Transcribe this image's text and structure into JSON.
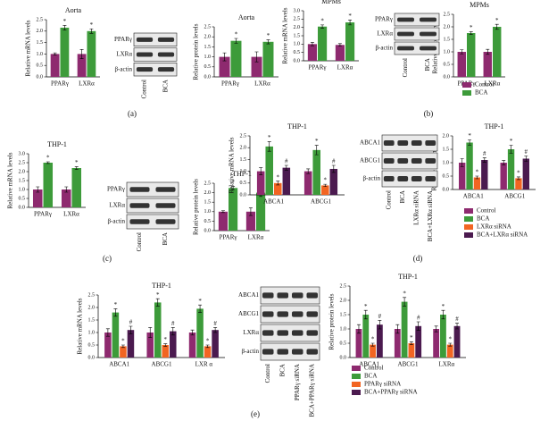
{
  "chart_data": [
    {
      "type": "bar",
      "title": "Aorta",
      "ylabel": "Relative mRNA levels",
      "categories": [
        "PPARγ",
        "LXRα"
      ],
      "ylim": [
        0,
        2.5
      ],
      "yticks": [
        {
          "value": 0,
          "label": "0.0"
        },
        0.5,
        {
          "value": 1,
          "label": "1.0"
        },
        1.5,
        {
          "value": 2,
          "label": "2.0"
        },
        2.5
      ],
      "series": [
        {
          "name": "Control",
          "color": "#8e2a6f",
          "values": [
            1.0,
            1.0
          ],
          "errors": [
            0.05,
            0.2
          ]
        },
        {
          "name": "BCA",
          "color": "#3d9b3a",
          "values": [
            2.15,
            2.0
          ],
          "errors": [
            0.1,
            0.1
          ],
          "marks": [
            "*",
            "*"
          ]
        }
      ]
    },
    {
      "type": "bar",
      "title": "Aorta",
      "ylabel": "Relative protein levels",
      "categories": [
        "PPARγ",
        "LXRα"
      ],
      "ylim": [
        0,
        2.5
      ],
      "yticks": [
        {
          "value": 0,
          "label": "0.0"
        },
        0.5,
        {
          "value": 1,
          "label": "1.0"
        },
        1.5,
        {
          "value": 2,
          "label": "2.0"
        },
        2.5
      ],
      "series": [
        {
          "name": "Control",
          "color": "#8e2a6f",
          "values": [
            1.0,
            1.0
          ],
          "errors": [
            0.2,
            0.25
          ]
        },
        {
          "name": "BCA",
          "color": "#3d9b3a",
          "values": [
            1.8,
            1.75
          ],
          "errors": [
            0.12,
            0.1
          ],
          "marks": [
            "*",
            "*"
          ]
        }
      ]
    },
    {
      "type": "bar",
      "title": "MPMs",
      "ylabel": "Relative mRNA levels",
      "categories": [
        "PPARγ",
        "LXRα"
      ],
      "ylim": [
        0,
        3
      ],
      "yticks": [
        {
          "value": 0,
          "label": "0.0"
        },
        0.5,
        {
          "value": 1,
          "label": "1.0"
        },
        1.5,
        {
          "value": 2,
          "label": "2.0"
        },
        2.5,
        {
          "value": 3,
          "label": "3.0"
        }
      ],
      "series": [
        {
          "name": "Control",
          "color": "#8e2a6f",
          "values": [
            1.0,
            0.95
          ],
          "errors": [
            0.1,
            0.08
          ]
        },
        {
          "name": "BCA",
          "color": "#3d9b3a",
          "values": [
            2.05,
            2.3
          ],
          "errors": [
            0.1,
            0.15
          ],
          "marks": [
            "*",
            "*"
          ]
        }
      ]
    },
    {
      "type": "bar",
      "title": "MPMs",
      "ylabel": "Relative protein levels",
      "categories": [
        "PPARγ",
        "LXRα"
      ],
      "legend": true,
      "ylim": [
        0,
        2.5
      ],
      "yticks": [
        {
          "value": 0,
          "label": "0.0"
        },
        0.5,
        {
          "value": 1,
          "label": "1.0"
        },
        1.5,
        {
          "value": 2,
          "label": "2.0"
        },
        2.5
      ],
      "series": [
        {
          "name": "Control",
          "color": "#8e2a6f",
          "values": [
            1.0,
            1.0
          ],
          "errors": [
            0.08,
            0.1
          ]
        },
        {
          "name": "BCA",
          "color": "#3d9b3a",
          "values": [
            1.75,
            2.0
          ],
          "errors": [
            0.05,
            0.1
          ],
          "marks": [
            "*",
            "*"
          ]
        }
      ]
    },
    {
      "type": "bar",
      "title": "THP-1",
      "ylabel": "Relative mRNA levels",
      "categories": [
        "PPARγ",
        "LXRα"
      ],
      "ylim": [
        0,
        3
      ],
      "yticks": [
        {
          "value": 0,
          "label": "0.0"
        },
        0.5,
        {
          "value": 1,
          "label": "1.0"
        },
        1.5,
        {
          "value": 2,
          "label": "2.0"
        },
        2.5,
        {
          "value": 3,
          "label": "3.0"
        }
      ],
      "series": [
        {
          "name": "Control",
          "color": "#8e2a6f",
          "values": [
            1.0,
            1.0
          ],
          "errors": [
            0.15,
            0.15
          ]
        },
        {
          "name": "BCA",
          "color": "#3d9b3a",
          "values": [
            2.5,
            2.2
          ],
          "errors": [
            0.05,
            0.08
          ],
          "marks": [
            "*",
            "*"
          ]
        }
      ]
    },
    {
      "type": "bar",
      "title": "THP-1",
      "ylabel": "Relative protein levels",
      "categories": [
        "PPARγ",
        "LXRα"
      ],
      "ylim": [
        0,
        2.5
      ],
      "yticks": [
        {
          "value": 0,
          "label": "0.0"
        },
        0.5,
        {
          "value": 1,
          "label": "1.0"
        },
        1.5,
        {
          "value": 2,
          "label": "2.0"
        },
        2.5
      ],
      "series": [
        {
          "name": "Control",
          "color": "#8e2a6f",
          "values": [
            1.0,
            1.0
          ],
          "errors": [
            0.05,
            0.2
          ]
        },
        {
          "name": "BCA",
          "color": "#3d9b3a",
          "values": [
            2.25,
            2.0
          ],
          "errors": [
            0.08,
            0.2
          ],
          "marks": [
            "*",
            "*"
          ]
        }
      ]
    },
    {
      "type": "bar",
      "title": "THP-1",
      "ylabel": "Relative mRNA levels",
      "categories": [
        "ABCA1",
        "ABCG1"
      ],
      "ylim": [
        0,
        2.5
      ],
      "yticks": [
        {
          "value": 0,
          "label": "0.0"
        },
        0.5,
        {
          "value": 1,
          "label": "1.0"
        },
        1.5,
        {
          "value": 2,
          "label": "2.0"
        },
        2.5
      ],
      "series": [
        {
          "name": "Control",
          "color": "#8e2a6f",
          "values": [
            1.0,
            1.0
          ],
          "errors": [
            0.15,
            0.1
          ]
        },
        {
          "name": "BCA",
          "color": "#3d9b3a",
          "values": [
            2.05,
            1.9
          ],
          "errors": [
            0.2,
            0.2
          ],
          "marks": [
            "*",
            "*"
          ]
        },
        {
          "name": "LXRα siRNA",
          "color": "#f26522",
          "values": [
            0.5,
            0.4
          ],
          "errors": [
            0.08,
            0.05
          ],
          "marks": [
            "*",
            "*"
          ]
        },
        {
          "name": "BCA+LXRα siRNA",
          "color": "#4b1a4f",
          "values": [
            1.15,
            1.1
          ],
          "errors": [
            0.1,
            0.15
          ],
          "marks": [
            "#",
            "#"
          ]
        }
      ]
    },
    {
      "type": "bar",
      "title": "THP-1",
      "ylabel": "Relative protein levels",
      "categories": [
        "ABCA1",
        "ABCG1"
      ],
      "legend": true,
      "ylim": [
        0,
        2
      ],
      "yticks": [
        {
          "value": 0,
          "label": "0.0"
        },
        0.5,
        {
          "value": 1,
          "label": "1.0"
        },
        1.5,
        {
          "value": 2,
          "label": "2.0"
        }
      ],
      "series": [
        {
          "name": "Control",
          "color": "#8e2a6f",
          "values": [
            1.0,
            1.0
          ],
          "errors": [
            0.15,
            0.08
          ]
        },
        {
          "name": "BCA",
          "color": "#3d9b3a",
          "values": [
            1.75,
            1.5
          ],
          "errors": [
            0.1,
            0.15
          ],
          "marks": [
            "*",
            "*"
          ]
        },
        {
          "name": "LXRα siRNA",
          "color": "#f26522",
          "values": [
            0.45,
            0.42
          ],
          "errors": [
            0.05,
            0.05
          ],
          "marks": [
            "*",
            "*"
          ]
        },
        {
          "name": "BCA+LXRα siRNA",
          "color": "#4b1a4f",
          "values": [
            1.1,
            1.15
          ],
          "errors": [
            0.08,
            0.1
          ],
          "marks": [
            "#",
            "#"
          ]
        }
      ]
    },
    {
      "type": "bar",
      "title": "THP-1",
      "ylabel": "Relative mRNA levels",
      "categories": [
        "ABCA1",
        "ABCG1",
        "LXR α"
      ],
      "ylim": [
        0,
        2.5
      ],
      "yticks": [
        {
          "value": 0,
          "label": "0.0"
        },
        0.5,
        {
          "value": 1,
          "label": "1.0"
        },
        1.5,
        {
          "value": 2,
          "label": "2.0"
        },
        2.5
      ],
      "series": [
        {
          "name": "Control",
          "color": "#8e2a6f",
          "values": [
            1.0,
            1.0,
            1.0
          ],
          "errors": [
            0.15,
            0.2,
            0.1
          ]
        },
        {
          "name": "BCA",
          "color": "#3d9b3a",
          "values": [
            1.8,
            2.2,
            1.95
          ],
          "errors": [
            0.15,
            0.15,
            0.15
          ],
          "marks": [
            "*",
            "*",
            "*"
          ]
        },
        {
          "name": "PPARγ siRNA",
          "color": "#f26522",
          "values": [
            0.45,
            0.5,
            0.45
          ],
          "errors": [
            0.05,
            0.05,
            0.05
          ],
          "marks": [
            "*",
            "*",
            "*"
          ]
        },
        {
          "name": "BCA+PPARγ siRNA",
          "color": "#4b1a4f",
          "values": [
            1.1,
            1.05,
            1.1
          ],
          "errors": [
            0.15,
            0.15,
            0.1
          ],
          "marks": [
            "#",
            "#",
            "#"
          ]
        }
      ]
    },
    {
      "type": "bar",
      "title": "THP-1",
      "ylabel": "Relative protein levels",
      "categories": [
        "ABCA1",
        "ABCG1",
        "LXRα"
      ],
      "legend": true,
      "ylim": [
        0,
        2.5
      ],
      "yticks": [
        {
          "value": 0,
          "label": "0.0"
        },
        0.5,
        {
          "value": 1,
          "label": "1.0"
        },
        1.5,
        {
          "value": 2,
          "label": "2.0"
        },
        2.5
      ],
      "series": [
        {
          "name": "Control",
          "color": "#8e2a6f",
          "values": [
            1.0,
            1.0,
            1.0
          ],
          "errors": [
            0.15,
            0.15,
            0.1
          ]
        },
        {
          "name": "BCA",
          "color": "#3d9b3a",
          "values": [
            1.5,
            1.95,
            1.5
          ],
          "errors": [
            0.15,
            0.15,
            0.15
          ],
          "marks": [
            "*",
            "*",
            "*"
          ]
        },
        {
          "name": "PPARγ siRNA",
          "color": "#f26522",
          "values": [
            0.45,
            0.5,
            0.45
          ],
          "errors": [
            0.05,
            0.05,
            0.05
          ],
          "marks": [
            "*",
            "*",
            "*"
          ]
        },
        {
          "name": "BCA+PPARγ siRNA",
          "color": "#4b1a4f",
          "values": [
            1.15,
            1.1,
            1.1
          ],
          "errors": [
            0.15,
            0.15,
            0.1
          ],
          "marks": [
            "#",
            "#",
            "#"
          ]
        }
      ]
    }
  ],
  "blots": [
    {
      "rows": [
        "PPARγ",
        "LXRα",
        "β-actin"
      ],
      "lanes": [
        "Control",
        "BCA"
      ]
    },
    {
      "rows": [
        "PPARγ",
        "LXRα",
        "β-actin"
      ],
      "lanes": [
        "Control",
        "BCA"
      ]
    },
    {
      "rows": [
        "PPARγ",
        "LXRα",
        "β-actin"
      ],
      "lanes": [
        "Control",
        "BCA"
      ]
    },
    {
      "rows": [
        "ABCA1",
        "ABCG1",
        "β-actin"
      ],
      "lanes": [
        "Control",
        "BCA",
        "LXRα siRNA",
        "BCA+LXRα siRNA"
      ]
    },
    {
      "rows": [
        "ABCA1",
        "ABCG1",
        "LXRα",
        "β-actin"
      ],
      "lanes": [
        "Control",
        "BCA",
        "PPARγ siRNA",
        "BCA+PPARγ siRNA"
      ]
    }
  ],
  "panels": [
    "(a)",
    "(b)",
    "(c)",
    "(d)",
    "(e)"
  ]
}
